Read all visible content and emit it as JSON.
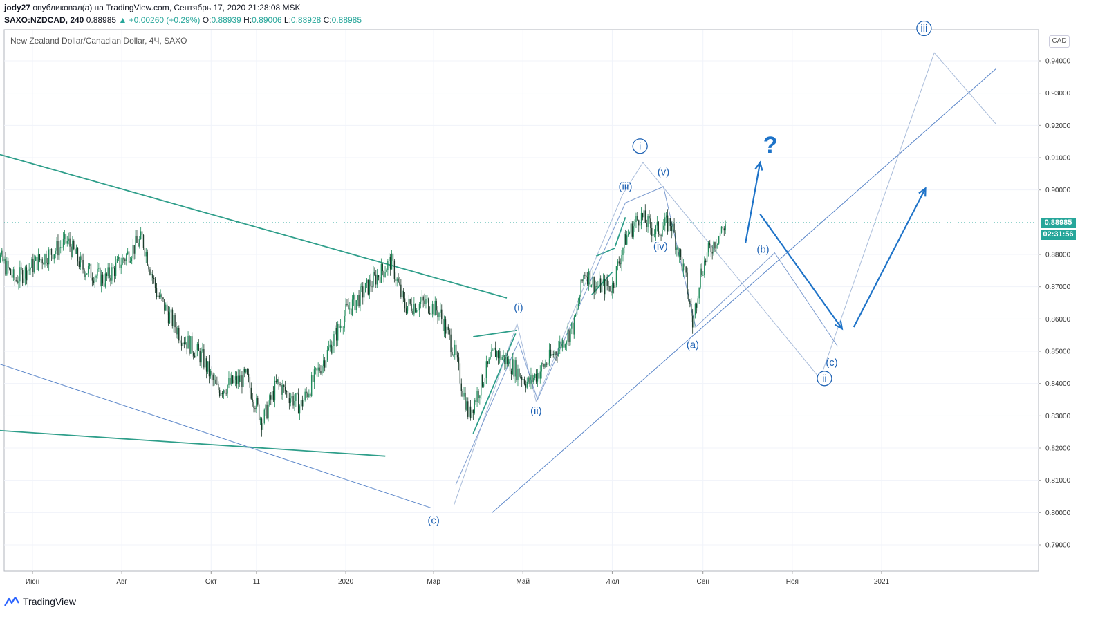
{
  "header": {
    "user": "jody27",
    "published_text": "опубликовал(а) на TradingView.com, Сентябрь 17, 2020 21:28:08 MSK",
    "symbol": "SAXO:NZDCAD, 240",
    "last": "0.88985",
    "change": "+0.00260 (+0.29%)",
    "o_label": "O:",
    "o": "0.88939",
    "h_label": "H:",
    "h": "0.89006",
    "l_label": "L:",
    "l": "0.88928",
    "c_label": "C:",
    "c": "0.88985"
  },
  "legend": "New Zealand Dollar/Canadian Dollar, 4Ч, SAXO",
  "currency": "CAD",
  "price_tag": "0.88985",
  "timer_tag": "02:31:56",
  "brand": "TradingView",
  "colors": {
    "accent": "#26a69a",
    "wave": "#1e62b4",
    "trend": "#2e9e8a",
    "channel": "#5b86c9"
  },
  "chart_data": {
    "type": "candlestick",
    "title": "New Zealand Dollar/Canadian Dollar, 4Ч, SAXO",
    "x_ticks": [
      "Июн",
      "Авг",
      "Окт",
      "11",
      "2020",
      "Мар",
      "Май",
      "Июл",
      "Сен",
      "Ноя",
      "2021"
    ],
    "y_ticks": [
      "0.94000",
      "0.93000",
      "0.92000",
      "0.91000",
      "0.90000",
      "0.88000",
      "0.87000",
      "0.86000",
      "0.85000",
      "0.84000",
      "0.83000",
      "0.82000",
      "0.81000",
      "0.80000",
      "0.79000"
    ],
    "ylim": [
      0.7805,
      0.9515
    ],
    "last_price": 0.88985,
    "price_path": [
      {
        "t": "2019-05-01",
        "p": 0.885
      },
      {
        "t": "2019-05-20",
        "p": 0.872
      },
      {
        "t": "2019-06-05",
        "p": 0.878
      },
      {
        "t": "2019-06-25",
        "p": 0.884
      },
      {
        "t": "2019-07-05",
        "p": 0.876
      },
      {
        "t": "2019-07-20",
        "p": 0.872
      },
      {
        "t": "2019-08-01",
        "p": 0.878
      },
      {
        "t": "2019-08-15",
        "p": 0.885
      },
      {
        "t": "2019-08-25",
        "p": 0.868
      },
      {
        "t": "2019-09-10",
        "p": 0.855
      },
      {
        "t": "2019-09-25",
        "p": 0.848
      },
      {
        "t": "2019-10-05",
        "p": 0.838
      },
      {
        "t": "2019-10-25",
        "p": 0.842
      },
      {
        "t": "2019-11-05",
        "p": 0.828
      },
      {
        "t": "2019-11-15",
        "p": 0.84
      },
      {
        "t": "2019-12-01",
        "p": 0.833
      },
      {
        "t": "2019-12-20",
        "p": 0.85
      },
      {
        "t": "2020-01-01",
        "p": 0.862
      },
      {
        "t": "2020-01-20",
        "p": 0.872
      },
      {
        "t": "2020-02-01",
        "p": 0.878
      },
      {
        "t": "2020-02-10",
        "p": 0.864
      },
      {
        "t": "2020-02-25",
        "p": 0.865
      },
      {
        "t": "2020-03-05",
        "p": 0.862
      },
      {
        "t": "2020-03-15",
        "p": 0.85
      },
      {
        "t": "2020-03-25",
        "p": 0.83
      },
      {
        "t": "2020-04-05",
        "p": 0.843
      },
      {
        "t": "2020-04-12",
        "p": 0.85
      },
      {
        "t": "2020-04-25",
        "p": 0.845
      },
      {
        "t": "2020-05-05",
        "p": 0.84
      },
      {
        "t": "2020-05-20",
        "p": 0.848
      },
      {
        "t": "2020-06-05",
        "p": 0.858
      },
      {
        "t": "2020-06-12",
        "p": 0.875
      },
      {
        "t": "2020-06-20",
        "p": 0.87
      },
      {
        "t": "2020-07-01",
        "p": 0.87
      },
      {
        "t": "2020-07-10",
        "p": 0.885
      },
      {
        "t": "2020-07-20",
        "p": 0.892
      },
      {
        "t": "2020-07-30",
        "p": 0.887
      },
      {
        "t": "2020-08-10",
        "p": 0.89
      },
      {
        "t": "2020-08-20",
        "p": 0.873
      },
      {
        "t": "2020-08-25",
        "p": 0.858
      },
      {
        "t": "2020-08-30",
        "p": 0.874
      },
      {
        "t": "2020-09-05",
        "p": 0.881
      },
      {
        "t": "2020-09-17",
        "p": 0.88985
      }
    ],
    "wave_labels": [
      {
        "label": "i",
        "circled": true,
        "t": "2020-07-20",
        "p": 0.9125
      },
      {
        "label": "(v)",
        "circled": false,
        "t": "2020-08-05",
        "p": 0.9045
      },
      {
        "label": "(iii)",
        "circled": false,
        "t": "2020-07-10",
        "p": 0.9
      },
      {
        "label": "(iv)",
        "circled": false,
        "t": "2020-08-03",
        "p": 0.8815
      },
      {
        "label": "(a)",
        "circled": false,
        "t": "2020-08-25",
        "p": 0.851
      },
      {
        "label": "(b)",
        "circled": false,
        "t": "2020-10-12",
        "p": 0.8805
      },
      {
        "label": "(c)",
        "circled": false,
        "t": "2020-11-28",
        "p": 0.8455
      },
      {
        "label": "ii",
        "circled": true,
        "t": "2020-11-23",
        "p": 0.8405
      },
      {
        "label": "iii",
        "circled": true,
        "t": "2021-01-30",
        "p": 0.949
      },
      {
        "label": "(i)",
        "circled": false,
        "t": "2020-04-28",
        "p": 0.8625
      },
      {
        "label": "(ii)",
        "circled": false,
        "t": "2020-05-10",
        "p": 0.8305
      },
      {
        "label": "(c)",
        "circled": false,
        "t": "2020-03-01",
        "p": 0.7965
      }
    ],
    "question_mark": "?"
  }
}
